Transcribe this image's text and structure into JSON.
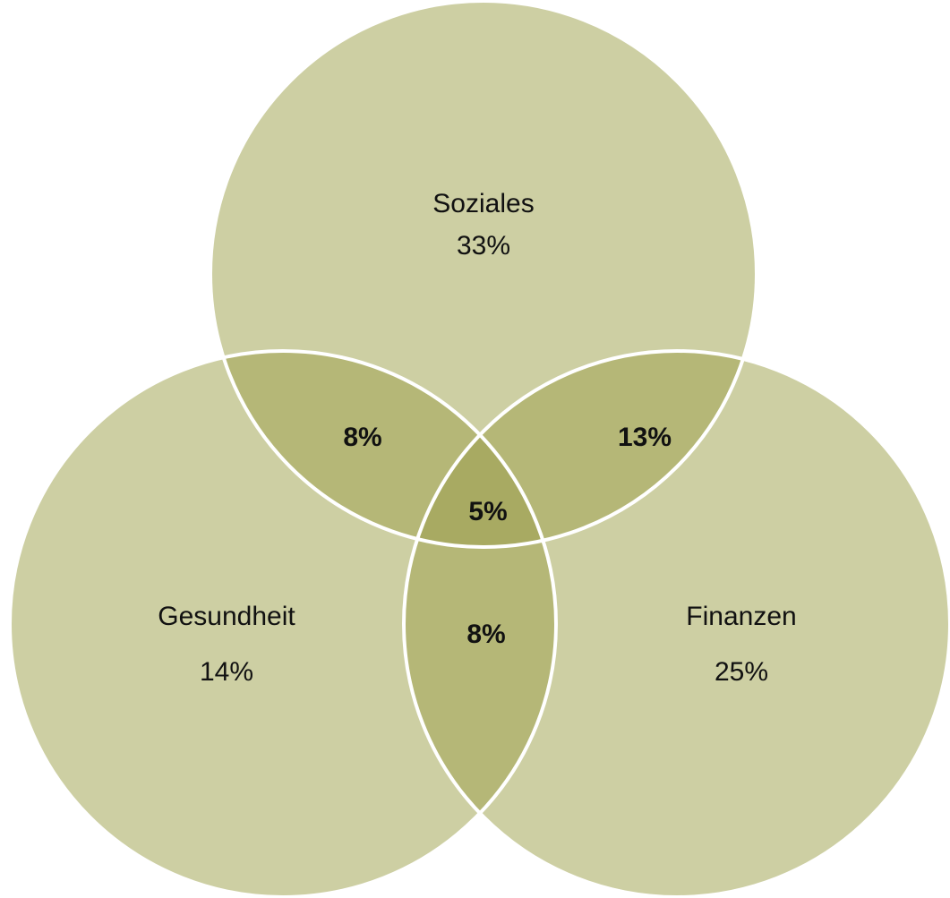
{
  "sets": [
    {
      "label": "Soziales",
      "share": "33%"
    },
    {
      "label": "Gesundheit",
      "share": "14%"
    },
    {
      "label": "Finanzen",
      "share": "25%"
    }
  ],
  "intersections": [
    {
      "sets": "Soziales-Gesundheit",
      "share": "8%"
    },
    {
      "sets": "Soziales-Finanzen",
      "share": "13%"
    },
    {
      "sets": "Gesundheit-Finanzen",
      "share": "8%"
    },
    {
      "sets": "all",
      "share": "5%"
    }
  ]
}
